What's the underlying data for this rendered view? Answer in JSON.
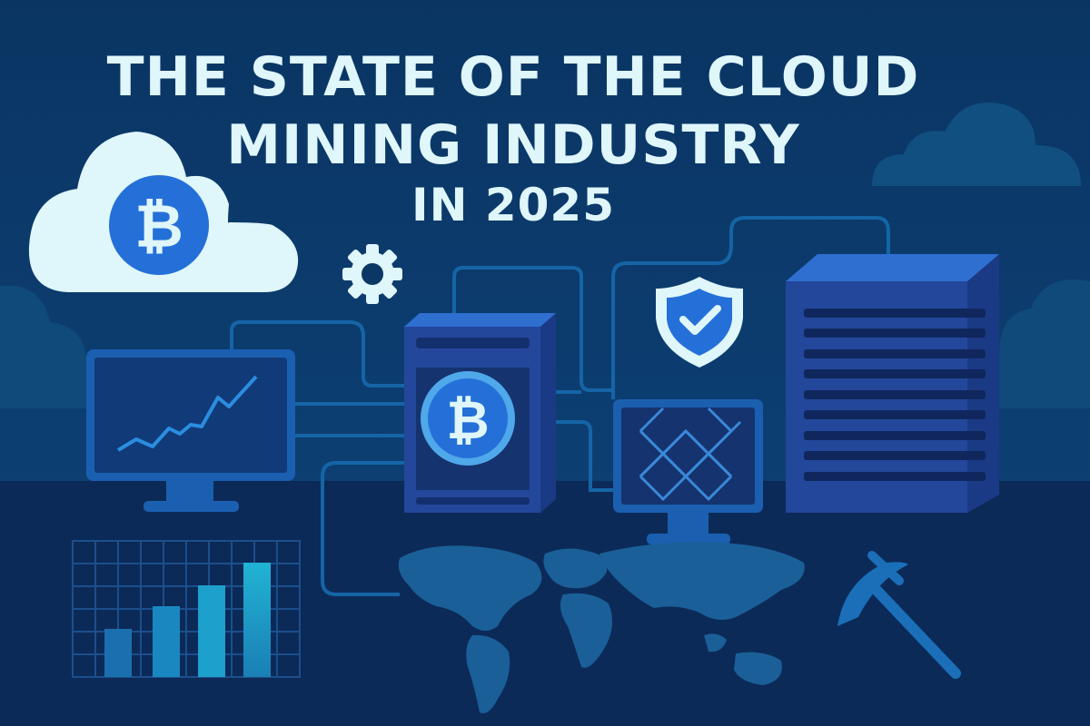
{
  "title": {
    "line1": "THE STATE OF THE CLOUD",
    "line2": "MINING INDUSTRY",
    "line3": "IN 2025"
  },
  "icons": [
    "cloud-bitcoin-icon",
    "gear-icon",
    "monitor-chart-icon",
    "server-bitcoin-icon",
    "shield-check-icon",
    "monitor-grid-icon",
    "server-tower-icon",
    "bar-chart-icon",
    "world-map-icon",
    "pickaxe-icon"
  ],
  "colors": {
    "background": "#0b3766",
    "title": "#dff6fb",
    "bitcoin": "#2470d8",
    "server": "#23479a",
    "accent": "#1aa6c8"
  }
}
